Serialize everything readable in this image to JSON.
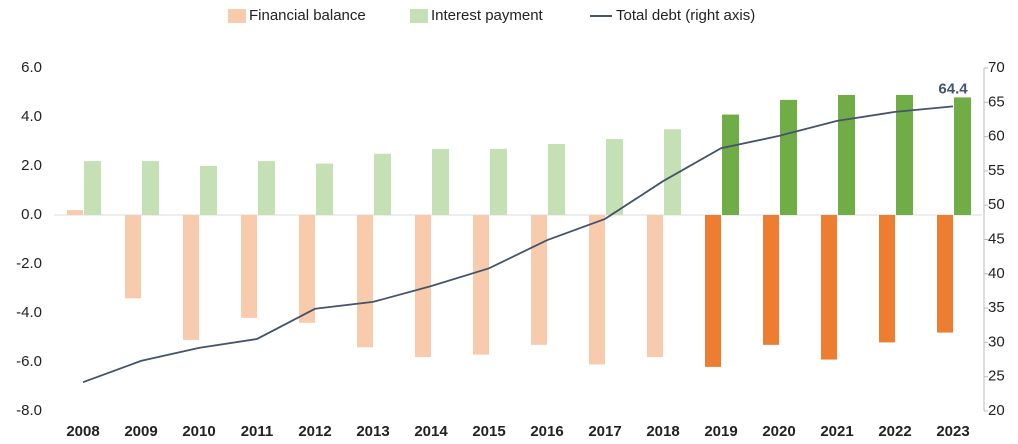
{
  "chart_data": {
    "type": "bar",
    "categories": [
      "2008",
      "2009",
      "2010",
      "2011",
      "2012",
      "2013",
      "2014",
      "2015",
      "2016",
      "2017",
      "2018",
      "2019",
      "2020",
      "2021",
      "2022",
      "2023"
    ],
    "series": [
      {
        "name": "Financial balance",
        "color": "#f8cbad",
        "point_colors": [
          "#f8cbad",
          "#f8cbad",
          "#f8cbad",
          "#f8cbad",
          "#f8cbad",
          "#f8cbad",
          "#f8cbad",
          "#f8cbad",
          "#f8cbad",
          "#f8cbad",
          "#f8cbad",
          "#ed7d31",
          "#ed7d31",
          "#ed7d31",
          "#ed7d31",
          "#ed7d31"
        ],
        "values": [
          0.2,
          -3.4,
          -5.1,
          -4.2,
          -4.4,
          -5.4,
          -5.8,
          -5.7,
          -5.3,
          -6.1,
          -5.8,
          -6.2,
          -5.3,
          -5.9,
          -5.2,
          -4.8
        ]
      },
      {
        "name": "Interest payment",
        "color": "#c5e0b4",
        "point_colors": [
          "#c5e0b4",
          "#c5e0b4",
          "#c5e0b4",
          "#c5e0b4",
          "#c5e0b4",
          "#c5e0b4",
          "#c5e0b4",
          "#c5e0b4",
          "#c5e0b4",
          "#c5e0b4",
          "#c5e0b4",
          "#70ad47",
          "#70ad47",
          "#70ad47",
          "#70ad47",
          "#70ad47"
        ],
        "values": [
          2.2,
          2.2,
          2.0,
          2.2,
          2.1,
          2.5,
          2.7,
          2.7,
          2.9,
          3.1,
          3.5,
          4.1,
          4.7,
          4.9,
          4.9,
          4.8
        ]
      },
      {
        "name": "Total debt (right axis)",
        "color": "#44546a",
        "type": "line",
        "axis": "y2",
        "values": [
          24.2,
          27.3,
          29.2,
          30.5,
          34.9,
          35.9,
          38.2,
          40.8,
          44.9,
          48.0,
          53.5,
          58.3,
          60.1,
          62.3,
          63.6,
          64.4
        ]
      }
    ],
    "ylim": [
      -8,
      6
    ],
    "yticks": [
      {
        "value": -8,
        "label": "-8.0"
      },
      {
        "value": -6,
        "label": "-6.0"
      },
      {
        "value": -4,
        "label": "-4.0"
      },
      {
        "value": -2,
        "label": "-2.0"
      },
      {
        "value": 0,
        "label": "0.0"
      },
      {
        "value": 2,
        "label": "2.0"
      },
      {
        "value": 4,
        "label": "4.0"
      },
      {
        "value": 6,
        "label": "6.0"
      }
    ],
    "y2lim": [
      20,
      70
    ],
    "y2ticks": [
      20,
      25,
      30,
      35,
      40,
      45,
      50,
      55,
      60,
      65,
      70
    ],
    "grid": false,
    "legend": "top"
  }
}
